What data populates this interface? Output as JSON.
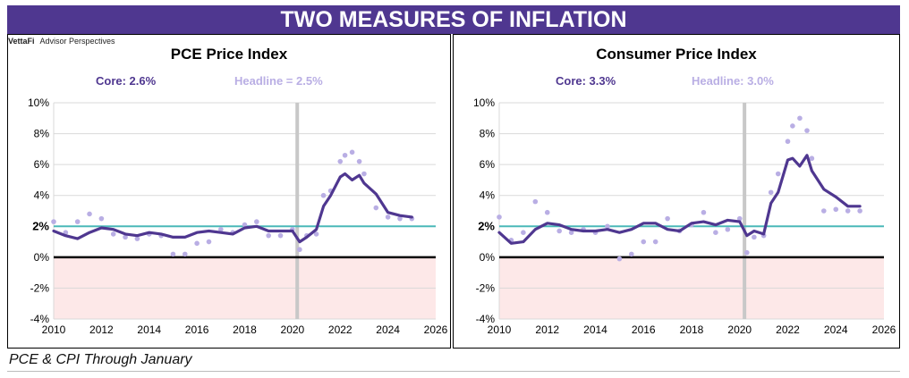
{
  "banner_title": "TWO MEASURES OF INFLATION",
  "brand": {
    "name": "VettaFi",
    "sub": "Advisor Perspectives"
  },
  "footnote": "PCE & CPI Through January",
  "colors": {
    "core": "#4f3790",
    "headline": "#b9aee4",
    "target": "#4bb8b8",
    "shade": "#fde8e8",
    "recession": "#c8c8c8",
    "banner": "#4f3790"
  },
  "chart_data": [
    {
      "type": "line",
      "title": "PCE Price Index",
      "legend": {
        "core": "Core: 2.6%",
        "headline": "Headline = 2.5%"
      },
      "xlim": [
        2010,
        2026
      ],
      "ylim": [
        -4,
        10
      ],
      "x_ticks": [
        "2010",
        "2012",
        "2014",
        "2016",
        "2018",
        "2020",
        "2022",
        "2024",
        "2026"
      ],
      "y_ticks": [
        "10%",
        "8%",
        "6%",
        "4%",
        "2%",
        "0%",
        "-2%",
        "-4%"
      ],
      "target_label": "2%",
      "target_value": 2,
      "recession_x": 2020.2,
      "grid": true,
      "series": [
        {
          "name": "Core",
          "style": "line",
          "x": [
            2010,
            2010.5,
            2011,
            2011.5,
            2012,
            2012.5,
            2013,
            2013.5,
            2014,
            2014.5,
            2015,
            2015.5,
            2016,
            2016.5,
            2017,
            2017.5,
            2018,
            2018.5,
            2019,
            2019.5,
            2020,
            2020.3,
            2020.6,
            2021,
            2021.3,
            2021.6,
            2022,
            2022.2,
            2022.5,
            2022.8,
            2023,
            2023.5,
            2024,
            2024.5,
            2025
          ],
          "values": [
            1.7,
            1.4,
            1.2,
            1.6,
            1.9,
            1.8,
            1.5,
            1.4,
            1.6,
            1.5,
            1.3,
            1.3,
            1.6,
            1.7,
            1.6,
            1.5,
            1.9,
            2.0,
            1.7,
            1.7,
            1.7,
            1.0,
            1.3,
            1.8,
            3.3,
            4.0,
            5.2,
            5.4,
            5.0,
            5.3,
            4.8,
            4.1,
            2.9,
            2.7,
            2.6
          ]
        },
        {
          "name": "Headline",
          "style": "dots",
          "x": [
            2010,
            2010.5,
            2011,
            2011.5,
            2012,
            2012.5,
            2013,
            2013.5,
            2014,
            2014.5,
            2015,
            2015.5,
            2016,
            2016.5,
            2017,
            2017.5,
            2018,
            2018.5,
            2019,
            2019.5,
            2020,
            2020.3,
            2020.6,
            2021,
            2021.3,
            2021.6,
            2022,
            2022.2,
            2022.5,
            2022.8,
            2023,
            2023.5,
            2024,
            2024.5,
            2025
          ],
          "values": [
            2.3,
            1.6,
            2.3,
            2.8,
            2.5,
            1.5,
            1.3,
            1.2,
            1.5,
            1.4,
            0.2,
            0.2,
            0.9,
            1.0,
            1.8,
            1.6,
            2.1,
            2.3,
            1.4,
            1.4,
            1.8,
            0.5,
            1.4,
            1.5,
            4.0,
            4.3,
            6.2,
            6.6,
            6.8,
            6.2,
            5.4,
            3.2,
            2.6,
            2.5,
            2.5
          ]
        }
      ]
    },
    {
      "type": "line",
      "title": "Consumer Price Index",
      "legend": {
        "core": "Core: 3.3%",
        "headline": "Headline: 3.0%"
      },
      "xlim": [
        2010,
        2026
      ],
      "ylim": [
        -4,
        10
      ],
      "x_ticks": [
        "2010",
        "2012",
        "2014",
        "2016",
        "2018",
        "2020",
        "2022",
        "2024",
        "2026"
      ],
      "y_ticks": [
        "10%",
        "8%",
        "6%",
        "4%",
        "2%",
        "0%",
        "-2%",
        "-4%"
      ],
      "target_label": "2%",
      "target_value": 2,
      "recession_x": 2020.2,
      "grid": true,
      "series": [
        {
          "name": "Core",
          "style": "line",
          "x": [
            2010,
            2010.5,
            2011,
            2011.5,
            2012,
            2012.5,
            2013,
            2013.5,
            2014,
            2014.5,
            2015,
            2015.5,
            2016,
            2016.5,
            2017,
            2017.5,
            2018,
            2018.5,
            2019,
            2019.5,
            2020,
            2020.3,
            2020.6,
            2021,
            2021.3,
            2021.6,
            2022,
            2022.2,
            2022.5,
            2022.8,
            2023,
            2023.5,
            2024,
            2024.5,
            2025
          ],
          "values": [
            1.6,
            0.9,
            1.0,
            1.8,
            2.2,
            2.1,
            1.8,
            1.7,
            1.7,
            1.8,
            1.6,
            1.8,
            2.2,
            2.2,
            1.8,
            1.7,
            2.2,
            2.3,
            2.1,
            2.4,
            2.3,
            1.4,
            1.7,
            1.5,
            3.5,
            4.2,
            6.3,
            6.4,
            5.9,
            6.6,
            5.6,
            4.4,
            3.9,
            3.3,
            3.3
          ]
        },
        {
          "name": "Headline",
          "style": "dots",
          "x": [
            2010,
            2010.5,
            2011,
            2011.5,
            2012,
            2012.5,
            2013,
            2013.5,
            2014,
            2014.5,
            2015,
            2015.5,
            2016,
            2016.5,
            2017,
            2017.5,
            2018,
            2018.5,
            2019,
            2019.5,
            2020,
            2020.3,
            2020.6,
            2021,
            2021.3,
            2021.6,
            2022,
            2022.2,
            2022.5,
            2022.8,
            2023,
            2023.5,
            2024,
            2024.5,
            2025
          ],
          "values": [
            2.6,
            1.1,
            1.6,
            3.6,
            2.9,
            1.7,
            1.6,
            1.8,
            1.6,
            2.0,
            -0.1,
            0.2,
            1.0,
            1.0,
            2.5,
            1.7,
            2.1,
            2.9,
            1.6,
            1.8,
            2.5,
            0.3,
            1.3,
            1.4,
            4.2,
            5.4,
            7.5,
            8.5,
            9.0,
            8.2,
            6.4,
            3.0,
            3.1,
            3.0,
            3.0
          ]
        }
      ]
    }
  ]
}
